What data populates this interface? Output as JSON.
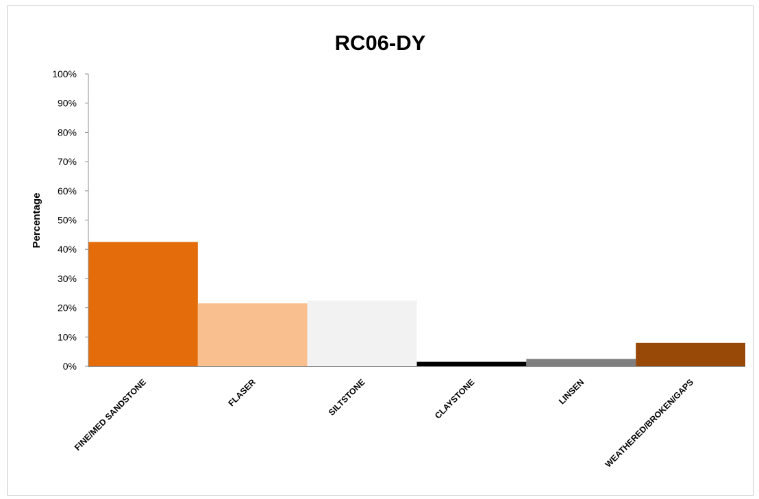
{
  "chart_data": {
    "type": "bar",
    "title": "RC06-DY",
    "ylabel": "Percentage",
    "xlabel": "",
    "ylim": [
      0,
      100
    ],
    "y_ticks": [
      "0%",
      "10%",
      "20%",
      "30%",
      "40%",
      "50%",
      "60%",
      "70%",
      "80%",
      "90%",
      "100%"
    ],
    "grid": false,
    "legend": "none",
    "categories": [
      "FINE/MED SANDSTONE",
      "FLASER",
      "SILTSTONE",
      "CLAYSTONE",
      "LINSEN",
      "WEATHERED/BROKEN/GAPS"
    ],
    "values": [
      42.5,
      21.5,
      22.5,
      1.5,
      2.5,
      8
    ],
    "colors": [
      "#e46c0a",
      "#f9bf8f",
      "#f2f2f2",
      "#000000",
      "#7f7f7f",
      "#984807"
    ]
  }
}
